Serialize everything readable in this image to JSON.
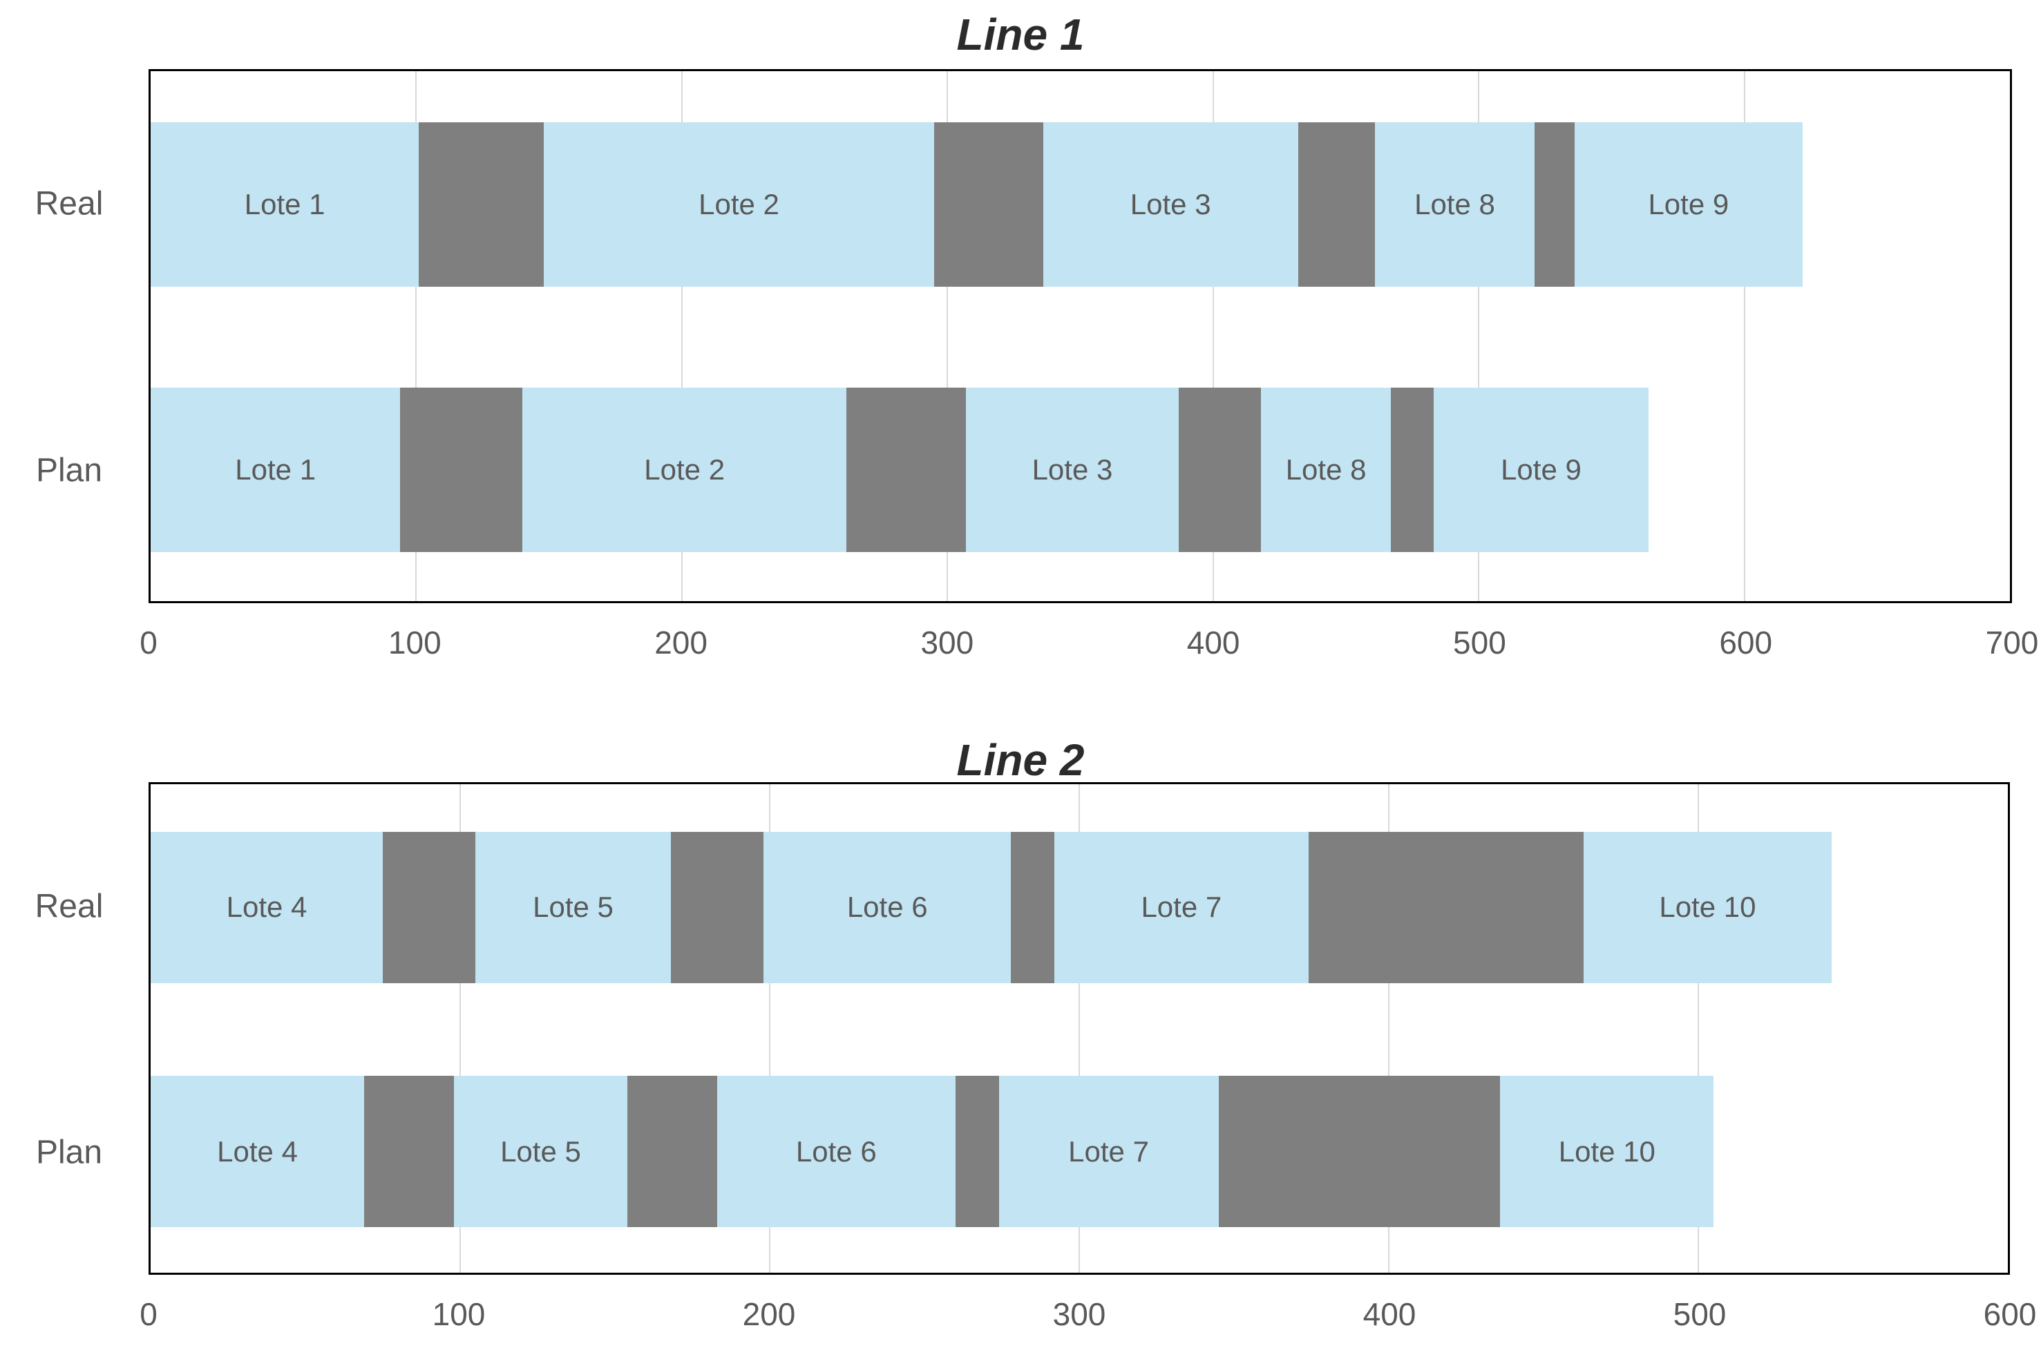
{
  "page": {
    "background": "#ffffff"
  },
  "colors": {
    "bar_fill": "#c3e4f3",
    "gap_fill": "#7f7f7f",
    "gridline": "#d9d9d9",
    "axis_line": "#000000",
    "label_text": "#595959",
    "title_text": "#2b2b2b"
  },
  "chart_data": [
    {
      "type": "bar",
      "variant": "horizontal-stacked-timeline",
      "title": "Line 1",
      "xlim": [
        0,
        700
      ],
      "xticks": [
        0,
        100,
        200,
        300,
        400,
        500,
        600,
        700
      ],
      "grid": "vertical",
      "legend": "none",
      "rows": [
        {
          "label": "Real",
          "segments": [
            {
              "label": "Lote 1",
              "start": 0,
              "end": 101,
              "kind": "lot"
            },
            {
              "label": "",
              "start": 101,
              "end": 148,
              "kind": "changeover"
            },
            {
              "label": "Lote 2",
              "start": 148,
              "end": 295,
              "kind": "lot"
            },
            {
              "label": "",
              "start": 295,
              "end": 336,
              "kind": "changeover"
            },
            {
              "label": "Lote 3",
              "start": 336,
              "end": 432,
              "kind": "lot"
            },
            {
              "label": "",
              "start": 432,
              "end": 461,
              "kind": "changeover"
            },
            {
              "label": "Lote 8",
              "start": 461,
              "end": 521,
              "kind": "lot"
            },
            {
              "label": "",
              "start": 521,
              "end": 536,
              "kind": "changeover"
            },
            {
              "label": "Lote 9",
              "start": 536,
              "end": 622,
              "kind": "lot"
            }
          ]
        },
        {
          "label": "Plan",
          "segments": [
            {
              "label": "Lote 1",
              "start": 0,
              "end": 94,
              "kind": "lot"
            },
            {
              "label": "",
              "start": 94,
              "end": 140,
              "kind": "changeover"
            },
            {
              "label": "Lote 2",
              "start": 140,
              "end": 262,
              "kind": "lot"
            },
            {
              "label": "",
              "start": 262,
              "end": 307,
              "kind": "changeover"
            },
            {
              "label": "Lote 3",
              "start": 307,
              "end": 387,
              "kind": "lot"
            },
            {
              "label": "",
              "start": 387,
              "end": 418,
              "kind": "changeover"
            },
            {
              "label": "Lote 8",
              "start": 418,
              "end": 467,
              "kind": "lot"
            },
            {
              "label": "",
              "start": 467,
              "end": 483,
              "kind": "changeover"
            },
            {
              "label": "Lote 9",
              "start": 483,
              "end": 564,
              "kind": "lot"
            }
          ]
        }
      ]
    },
    {
      "type": "bar",
      "variant": "horizontal-stacked-timeline",
      "title": "Line 2",
      "xlim": [
        0,
        600
      ],
      "xticks": [
        0,
        100,
        200,
        300,
        400,
        500,
        600
      ],
      "grid": "vertical",
      "legend": "none",
      "rows": [
        {
          "label": "Real",
          "segments": [
            {
              "label": "Lote 4",
              "start": 0,
              "end": 75,
              "kind": "lot"
            },
            {
              "label": "",
              "start": 75,
              "end": 105,
              "kind": "changeover"
            },
            {
              "label": "Lote 5",
              "start": 105,
              "end": 168,
              "kind": "lot"
            },
            {
              "label": "",
              "start": 168,
              "end": 198,
              "kind": "changeover"
            },
            {
              "label": "Lote 6",
              "start": 198,
              "end": 278,
              "kind": "lot"
            },
            {
              "label": "",
              "start": 278,
              "end": 292,
              "kind": "changeover"
            },
            {
              "label": "Lote 7",
              "start": 292,
              "end": 374,
              "kind": "lot"
            },
            {
              "label": "",
              "start": 374,
              "end": 463,
              "kind": "changeover"
            },
            {
              "label": "Lote 10",
              "start": 463,
              "end": 543,
              "kind": "lot"
            }
          ]
        },
        {
          "label": "Plan",
          "segments": [
            {
              "label": "Lote 4",
              "start": 0,
              "end": 69,
              "kind": "lot"
            },
            {
              "label": "",
              "start": 69,
              "end": 98,
              "kind": "changeover"
            },
            {
              "label": "Lote 5",
              "start": 98,
              "end": 154,
              "kind": "lot"
            },
            {
              "label": "",
              "start": 154,
              "end": 183,
              "kind": "changeover"
            },
            {
              "label": "Lote 6",
              "start": 183,
              "end": 260,
              "kind": "lot"
            },
            {
              "label": "",
              "start": 260,
              "end": 274,
              "kind": "changeover"
            },
            {
              "label": "Lote 7",
              "start": 274,
              "end": 345,
              "kind": "lot"
            },
            {
              "label": "",
              "start": 345,
              "end": 436,
              "kind": "changeover"
            },
            {
              "label": "Lote 10",
              "start": 436,
              "end": 505,
              "kind": "lot"
            }
          ]
        }
      ]
    }
  ]
}
